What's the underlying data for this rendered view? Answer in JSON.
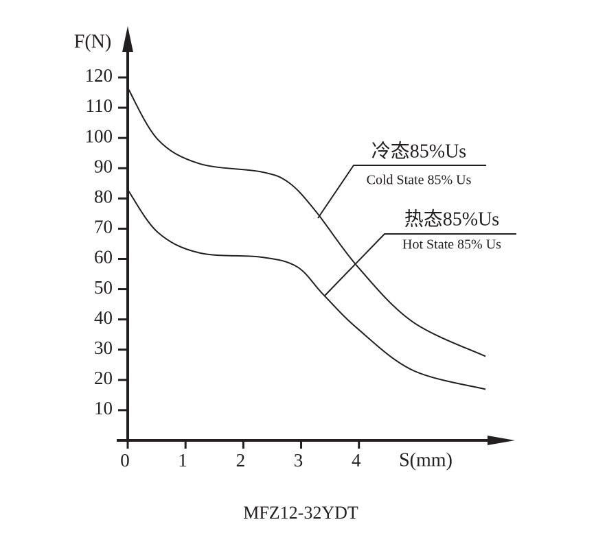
{
  "chart_data": {
    "type": "line",
    "title": "MFZ12-32YDT",
    "x_label": "S(mm)",
    "y_label": "F(N)",
    "x": [
      0,
      0.52,
      1.24,
      2.31,
      2.79,
      3.26,
      3.98,
      4.93,
      6.19
    ],
    "series": [
      {
        "name": "Cold State 85% Us",
        "color": "#231f20",
        "values": [
          116.6,
          99.5,
          91.5,
          88.8,
          85.2,
          75.6,
          57.4,
          39.2,
          27.8
        ]
      },
      {
        "name": "Hot State 85% Us",
        "color": "#231f20",
        "x": [
          0,
          0.52,
          1.24,
          2.31,
          2.93,
          3.38,
          3.98,
          4.93,
          6.19
        ],
        "values": [
          82.9,
          68.8,
          62,
          60.6,
          57.4,
          48.3,
          36.9,
          23.2,
          16.9
        ]
      }
    ],
    "annotations": [
      "冷态85%Us",
      "Cold State 85% Us",
      "热态85%Us",
      "Hot State 85% Us"
    ],
    "xlim": [
      0,
      6.7
    ],
    "ylim": [
      0,
      137
    ],
    "xticks": [
      0,
      1,
      2,
      3,
      4
    ],
    "yticks": [
      10,
      20,
      30,
      40,
      50,
      60,
      70,
      80,
      90,
      100,
      110,
      120
    ]
  }
}
